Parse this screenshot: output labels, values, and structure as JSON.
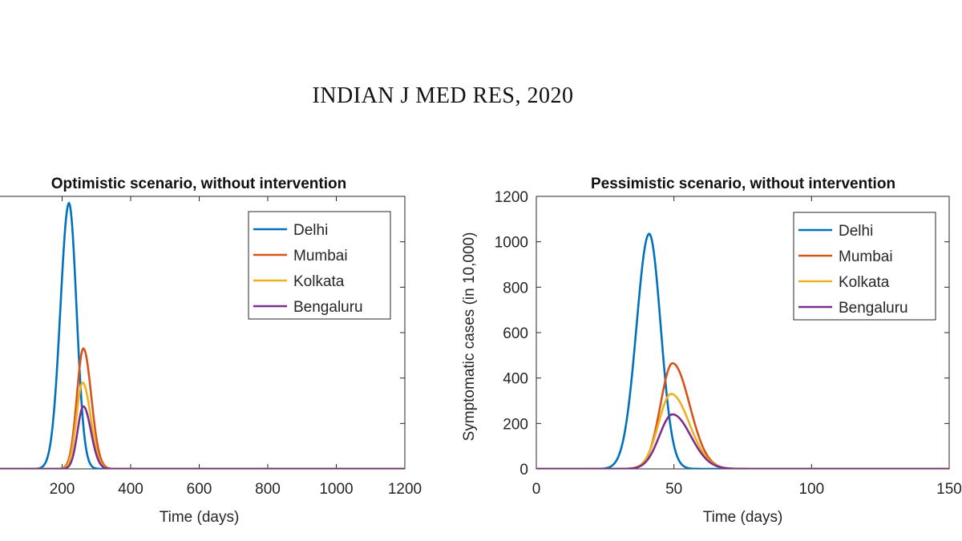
{
  "header": {
    "journal": "INDIAN J MED RES, 2020"
  },
  "chart_data": [
    {
      "type": "line",
      "title": "Optimistic scenario, without intervention",
      "xlabel": "Time (days)",
      "ylabel": "",
      "xlim": [
        0,
        1200
      ],
      "ylim": [
        0,
        1200
      ],
      "xticks": [
        200,
        400,
        600,
        800,
        1000,
        1200
      ],
      "xtick_labels": [
        "200",
        "400",
        "600",
        "800",
        "1000",
        "1200"
      ],
      "yticks": [
        0,
        200,
        400,
        600,
        800,
        1000,
        1200
      ],
      "legend_position": "top-right",
      "series": [
        {
          "name": "Delhi",
          "color": "#0072BD",
          "peak_x": 220,
          "peak_y": 1170,
          "sigma_left": 25,
          "sigma_right": 22
        },
        {
          "name": "Mumbai",
          "color": "#D95319",
          "peak_x": 262,
          "peak_y": 530,
          "sigma_left": 19,
          "sigma_right": 23
        },
        {
          "name": "Kolkata",
          "color": "#EDB120",
          "peak_x": 260,
          "peak_y": 380,
          "sigma_left": 18,
          "sigma_right": 23
        },
        {
          "name": "Bengaluru",
          "color": "#7E2F8E",
          "peak_x": 262,
          "peak_y": 275,
          "sigma_left": 17,
          "sigma_right": 22
        }
      ]
    },
    {
      "type": "line",
      "title": "Pessimistic scenario, without intervention",
      "xlabel": "Time (days)",
      "ylabel": "Symptomatic cases (in 10,000)",
      "xlim": [
        0,
        150
      ],
      "ylim": [
        0,
        1200
      ],
      "xticks": [
        0,
        50,
        100,
        150
      ],
      "xtick_labels": [
        "0",
        "50",
        "100",
        "150"
      ],
      "yticks": [
        0,
        200,
        400,
        600,
        800,
        1000,
        1200
      ],
      "legend_position": "top-right",
      "series": [
        {
          "name": "Delhi",
          "color": "#0072BD",
          "peak_x": 41,
          "peak_y": 1035,
          "sigma_left": 4.6,
          "sigma_right": 4.2
        },
        {
          "name": "Mumbai",
          "color": "#D95319",
          "peak_x": 49.5,
          "peak_y": 465,
          "sigma_left": 4.4,
          "sigma_right": 6.2
        },
        {
          "name": "Kolkata",
          "color": "#EDB120",
          "peak_x": 49,
          "peak_y": 330,
          "sigma_left": 4.6,
          "sigma_right": 6.6
        },
        {
          "name": "Bengaluru",
          "color": "#7E2F8E",
          "peak_x": 49.5,
          "peak_y": 240,
          "sigma_left": 4.8,
          "sigma_right": 6.6
        }
      ]
    }
  ]
}
